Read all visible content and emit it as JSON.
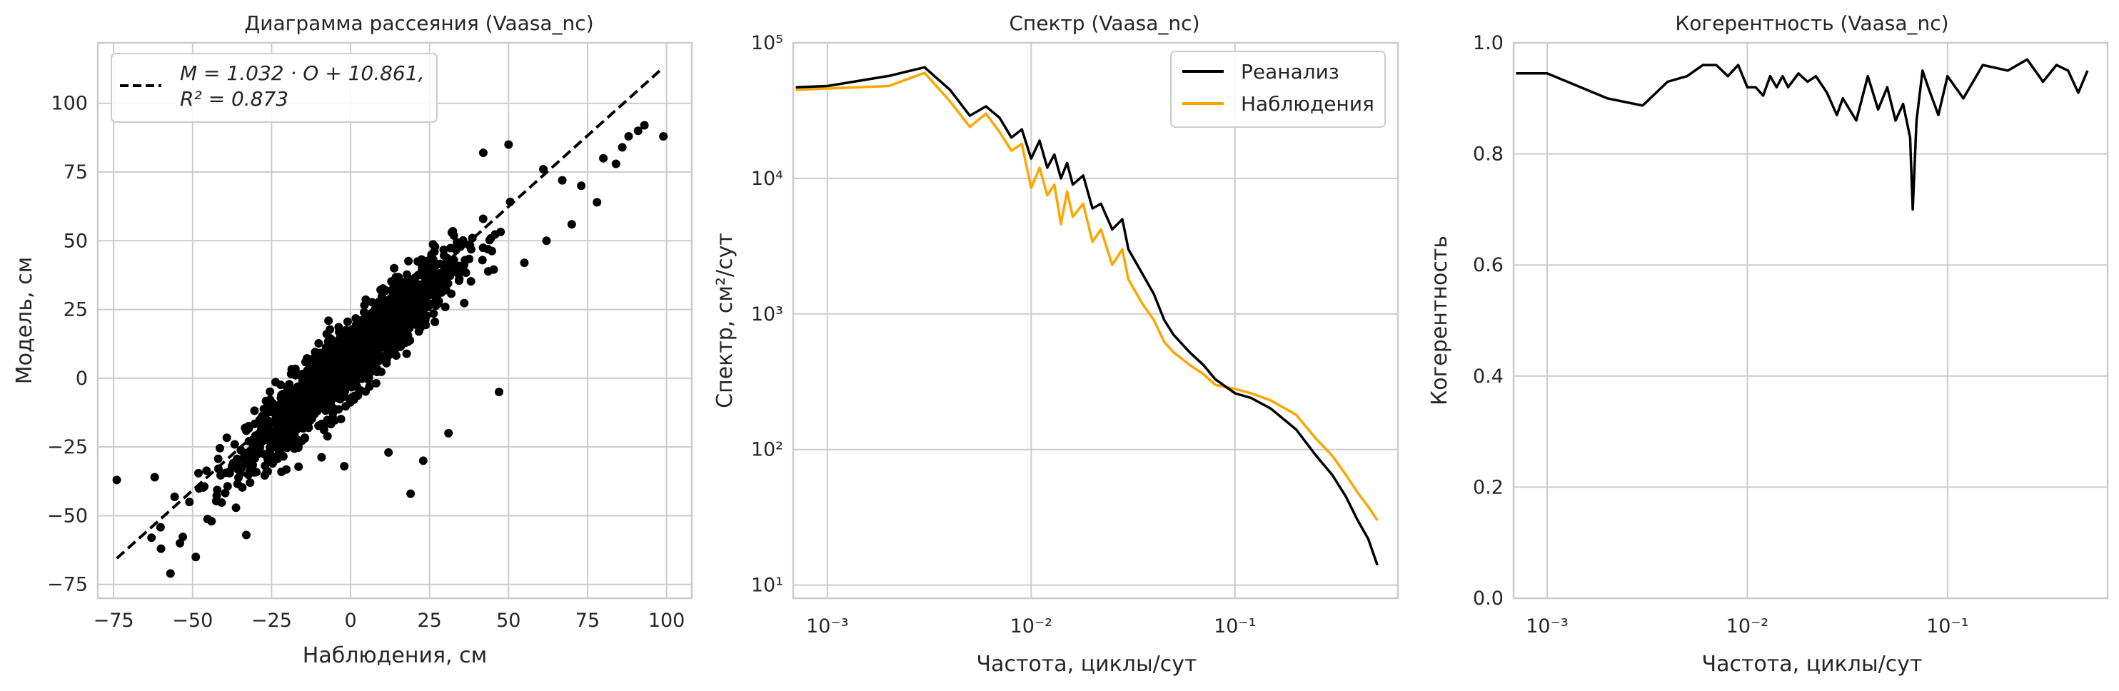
{
  "colors": {
    "reanalysis": "#000000",
    "observations": "#ffa500",
    "scatter": "#000000",
    "fit": "#000000",
    "grid": "#cccccc"
  },
  "chart_data": [
    {
      "type": "scatter",
      "title": "Диаграмма рассеяния (Vaasa_nc)",
      "xlabel": "Наблюдения, см",
      "ylabel": "Модель, см",
      "xlim": [
        -80,
        108
      ],
      "ylim": [
        -80,
        122
      ],
      "xticks": [
        -75,
        -50,
        -25,
        0,
        25,
        50,
        75,
        100
      ],
      "yticks": [
        -75,
        -50,
        -25,
        0,
        25,
        50,
        75,
        100
      ],
      "grid": true,
      "legend_position": "top-left",
      "fit": {
        "slope": 1.032,
        "intercept": 10.861,
        "r2": 0.873,
        "x_range": [
          -74,
          99
        ]
      },
      "legend_line1": "M = 1.032 · O + 10.861,",
      "legend_line2": "R² = 0.873",
      "cloud": {
        "n_points": 1800,
        "x_mean": 0,
        "x_sd": 16,
        "noise_sd": 6.5
      },
      "outliers": [
        {
          "x": -74,
          "y": -37
        },
        {
          "x": -63,
          "y": -58
        },
        {
          "x": -60,
          "y": -62
        },
        {
          "x": -57,
          "y": -71
        },
        {
          "x": -54,
          "y": -60
        },
        {
          "x": -51,
          "y": -45
        },
        {
          "x": -49,
          "y": -65
        },
        {
          "x": -44,
          "y": -52
        },
        {
          "x": -62,
          "y": -36
        },
        {
          "x": -33,
          "y": -57
        },
        {
          "x": -2,
          "y": -32
        },
        {
          "x": 12,
          "y": -27
        },
        {
          "x": 19,
          "y": -42
        },
        {
          "x": 23,
          "y": -30
        },
        {
          "x": 31,
          "y": -20
        },
        {
          "x": 47,
          "y": -5
        },
        {
          "x": 80,
          "y": 80
        },
        {
          "x": 84,
          "y": 78
        },
        {
          "x": 86,
          "y": 84
        },
        {
          "x": 88,
          "y": 88
        },
        {
          "x": 91,
          "y": 90
        },
        {
          "x": 93,
          "y": 92
        },
        {
          "x": 99,
          "y": 88
        },
        {
          "x": 78,
          "y": 64
        },
        {
          "x": 73,
          "y": 70
        },
        {
          "x": 67,
          "y": 72
        },
        {
          "x": 70,
          "y": 56
        },
        {
          "x": 61,
          "y": 76
        },
        {
          "x": 55,
          "y": 42
        },
        {
          "x": 62,
          "y": 50
        },
        {
          "x": 42,
          "y": 82
        },
        {
          "x": 50,
          "y": 85
        }
      ]
    },
    {
      "type": "line",
      "title": "Спектр (Vaasa_nc)",
      "xlabel": "Частота, циклы/сут",
      "ylabel": "Спектр, см²/сут",
      "xscale": "log",
      "yscale": "log",
      "xlim": [
        0.00068,
        0.63
      ],
      "ylim": [
        8,
        100000
      ],
      "xtick_labels": [
        "10⁻³",
        "10⁻²",
        "10⁻¹"
      ],
      "ytick_labels": [
        "10¹",
        "10²",
        "10³",
        "10⁴",
        "10⁵"
      ],
      "grid": true,
      "legend_position": "top-right",
      "series": [
        {
          "name": "Реанализ",
          "x": [
            0.0007,
            0.001,
            0.002,
            0.003,
            0.004,
            0.005,
            0.006,
            0.007,
            0.008,
            0.009,
            0.01,
            0.011,
            0.012,
            0.013,
            0.014,
            0.015,
            0.016,
            0.018,
            0.02,
            0.022,
            0.025,
            0.028,
            0.03,
            0.035,
            0.04,
            0.045,
            0.05,
            0.06,
            0.07,
            0.08,
            0.1,
            0.12,
            0.15,
            0.2,
            0.25,
            0.3,
            0.35,
            0.4,
            0.45,
            0.5
          ],
          "y": [
            47000,
            48000,
            57000,
            66000,
            45000,
            29000,
            34000,
            28000,
            20000,
            23000,
            14000,
            19000,
            12000,
            15000,
            10000,
            13000,
            9000,
            10500,
            6000,
            6500,
            4200,
            5000,
            3000,
            2000,
            1400,
            900,
            700,
            520,
            420,
            330,
            260,
            240,
            200,
            140,
            90,
            65,
            45,
            30,
            22,
            14
          ]
        },
        {
          "name": "Наблюдения",
          "x": [
            0.0007,
            0.001,
            0.002,
            0.003,
            0.004,
            0.005,
            0.006,
            0.007,
            0.008,
            0.009,
            0.01,
            0.011,
            0.012,
            0.013,
            0.014,
            0.015,
            0.016,
            0.018,
            0.02,
            0.022,
            0.025,
            0.028,
            0.03,
            0.035,
            0.04,
            0.045,
            0.05,
            0.06,
            0.07,
            0.08,
            0.1,
            0.12,
            0.15,
            0.2,
            0.25,
            0.3,
            0.35,
            0.4,
            0.45,
            0.5
          ],
          "y": [
            45000,
            46000,
            48000,
            60000,
            37000,
            24000,
            30000,
            22000,
            16000,
            18000,
            8500,
            12000,
            7500,
            9000,
            4600,
            8000,
            5200,
            6500,
            3400,
            4200,
            2300,
            3000,
            1800,
            1200,
            900,
            620,
            520,
            420,
            360,
            300,
            280,
            260,
            230,
            180,
            120,
            90,
            65,
            48,
            38,
            30
          ]
        }
      ]
    },
    {
      "type": "line",
      "title": "Когерентность (Vaasa_nc)",
      "xlabel": "Частота, циклы/сут",
      "ylabel": "Когерентность",
      "xscale": "log",
      "xlim": [
        0.00068,
        0.63
      ],
      "ylim": [
        0,
        1.0
      ],
      "xtick_labels": [
        "10⁻³",
        "10⁻²",
        "10⁻¹"
      ],
      "yticks": [
        0.0,
        0.2,
        0.4,
        0.6,
        0.8,
        1.0
      ],
      "ytick_labels": [
        "0.0",
        "0.2",
        "0.4",
        "0.6",
        "0.8",
        "1.0"
      ],
      "grid": true,
      "series": [
        {
          "name": "",
          "x": [
            0.0007,
            0.001,
            0.002,
            0.003,
            0.004,
            0.005,
            0.006,
            0.007,
            0.008,
            0.009,
            0.01,
            0.011,
            0.012,
            0.013,
            0.014,
            0.015,
            0.016,
            0.018,
            0.02,
            0.022,
            0.025,
            0.028,
            0.03,
            0.035,
            0.04,
            0.045,
            0.05,
            0.055,
            0.06,
            0.065,
            0.067,
            0.07,
            0.075,
            0.08,
            0.09,
            0.1,
            0.12,
            0.15,
            0.2,
            0.25,
            0.3,
            0.35,
            0.4,
            0.45,
            0.5
          ],
          "y": [
            0.945,
            0.945,
            0.9,
            0.887,
            0.93,
            0.94,
            0.96,
            0.96,
            0.94,
            0.96,
            0.92,
            0.92,
            0.905,
            0.94,
            0.92,
            0.94,
            0.92,
            0.945,
            0.93,
            0.94,
            0.91,
            0.87,
            0.9,
            0.86,
            0.94,
            0.88,
            0.92,
            0.86,
            0.89,
            0.83,
            0.7,
            0.86,
            0.95,
            0.92,
            0.87,
            0.94,
            0.9,
            0.96,
            0.95,
            0.97,
            0.93,
            0.96,
            0.95,
            0.91,
            0.95
          ]
        }
      ]
    }
  ]
}
